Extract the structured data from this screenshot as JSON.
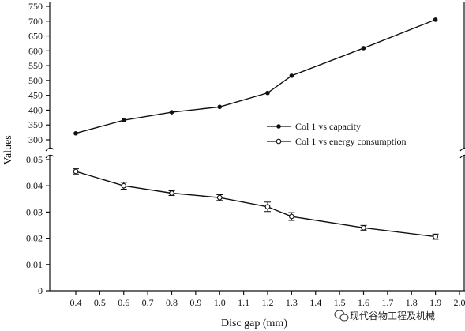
{
  "chart_data": {
    "type": "line",
    "xlabel": "Disc gap (mm)",
    "ylabel": "Values",
    "x_ticks": [
      "0.4",
      "0.5",
      "0.6",
      "0.7",
      "0.8",
      "0.9",
      "1.0",
      "1.1",
      "1.2",
      "1.3",
      "1.4",
      "1.5",
      "1.6",
      "1.7",
      "1.8",
      "1.9",
      "2.0"
    ],
    "x_tick_values": [
      0.4,
      0.5,
      0.6,
      0.7,
      0.8,
      0.9,
      1.0,
      1.1,
      1.2,
      1.3,
      1.4,
      1.5,
      1.6,
      1.7,
      1.8,
      1.9,
      2.0
    ],
    "x_points": [
      0.4,
      0.6,
      0.8,
      1.0,
      1.2,
      1.3,
      1.6,
      1.9
    ],
    "top_panel": {
      "ylim": [
        300,
        750
      ],
      "y_ticks": [
        "750",
        "700",
        "650",
        "600",
        "550",
        "500",
        "450",
        "400",
        "350",
        "300"
      ],
      "y_tick_values": [
        750,
        700,
        650,
        600,
        550,
        500,
        450,
        400,
        350,
        300
      ]
    },
    "bottom_panel": {
      "ylim": [
        0,
        0.05
      ],
      "y_ticks": [
        "0.05",
        "0.04",
        "0.03",
        "0.02",
        "0.01",
        "0"
      ],
      "y_tick_values": [
        0.05,
        0.04,
        0.03,
        0.02,
        0.01,
        0
      ]
    },
    "series": [
      {
        "name": "Col 1 vs capacity",
        "panel": "top",
        "marker": "filled-circle",
        "values": [
          322,
          366,
          393,
          411,
          458,
          516,
          609,
          705
        ]
      },
      {
        "name": "Col 1 vs energy consumption",
        "panel": "bottom",
        "marker": "open-circle",
        "values": [
          0.0455,
          0.04,
          0.0372,
          0.0355,
          0.032,
          0.0283,
          0.024,
          0.0206
        ],
        "errors": [
          0.001,
          0.0013,
          0.0009,
          0.0011,
          0.0018,
          0.0015,
          0.0009,
          0.001
        ]
      }
    ],
    "legend": {
      "position": "right-middle"
    },
    "grid": false
  },
  "watermark": {
    "text": "现代谷物工程及机械"
  }
}
